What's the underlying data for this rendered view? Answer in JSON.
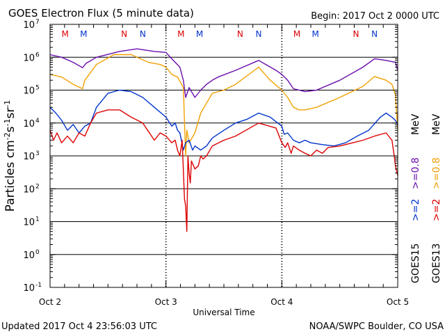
{
  "header": {
    "title": "GOES Electron Flux (5 minute data)",
    "begin": "Begin: 2017 Oct 2 0000 UTC"
  },
  "footer": {
    "updated": "Updated 2017 Oct  4 23:56:03 UTC",
    "credit": "NOAA/SWPC Boulder, CO USA"
  },
  "colors": {
    "goes15_08": "#6a0dad",
    "goes13_08": "#f0a000",
    "goes15_2": "#0033cc",
    "goes13_2": "#dd0000"
  },
  "chart_data": {
    "type": "line",
    "title": "GOES Electron Flux (5 minute data)",
    "xlabel": "Universal Time",
    "ylabel": "Particles cm-2s-1sr-1",
    "yscale": "log",
    "ylim": [
      0.1,
      10000000
    ],
    "xlim": [
      0,
      3
    ],
    "x_ticks": [
      {
        "x": 0,
        "label": "Oct 2"
      },
      {
        "x": 1,
        "label": "Oct 3"
      },
      {
        "x": 2,
        "label": "Oct 4"
      },
      {
        "x": 3,
        "label": "Oct 5"
      }
    ],
    "y_ticks": [
      {
        "exp": -1,
        "label": "10",
        "sup": "-1"
      },
      {
        "exp": 0,
        "label": "10",
        "sup": "0"
      },
      {
        "exp": 1,
        "label": "10",
        "sup": "1"
      },
      {
        "exp": 2,
        "label": "10",
        "sup": "2"
      },
      {
        "exp": 3,
        "label": "10",
        "sup": "3"
      },
      {
        "exp": 4,
        "label": "10",
        "sup": "4"
      },
      {
        "exp": 5,
        "label": "10",
        "sup": "5"
      },
      {
        "exp": 6,
        "label": "10",
        "sup": "6"
      },
      {
        "exp": 7,
        "label": "10",
        "sup": "7"
      }
    ],
    "threshold": 1000,
    "grid": "horizontal decades",
    "mn_markers": [
      {
        "x": 0.13,
        "label": "M",
        "color": "#dd0000"
      },
      {
        "x": 0.29,
        "label": "M",
        "color": "#0033cc"
      },
      {
        "x": 0.64,
        "label": "N",
        "color": "#dd0000"
      },
      {
        "x": 0.8,
        "label": "N",
        "color": "#0033cc"
      },
      {
        "x": 1.13,
        "label": "M",
        "color": "#dd0000"
      },
      {
        "x": 1.29,
        "label": "M",
        "color": "#0033cc"
      },
      {
        "x": 1.64,
        "label": "N",
        "color": "#dd0000"
      },
      {
        "x": 1.8,
        "label": "N",
        "color": "#0033cc"
      },
      {
        "x": 2.13,
        "label": "M",
        "color": "#dd0000"
      },
      {
        "x": 2.29,
        "label": "M",
        "color": "#0033cc"
      },
      {
        "x": 2.64,
        "label": "N",
        "color": "#dd0000"
      },
      {
        "x": 2.8,
        "label": "N",
        "color": "#0033cc"
      }
    ],
    "legend": {
      "placement": "right",
      "col1": [
        {
          "text": ">=2",
          "color": "#0033cc"
        },
        {
          "text": ">=0.8",
          "color": "#6a0dad"
        },
        {
          "text": "MeV",
          "color": "#000000"
        },
        {
          "text": "GOES15",
          "color": "#000000"
        }
      ],
      "col2": [
        {
          "text": ">=2",
          "color": "#dd0000"
        },
        {
          "text": ">=0.8",
          "color": "#f0a000"
        },
        {
          "text": "MeV",
          "color": "#000000"
        },
        {
          "text": "GOES13",
          "color": "#000000"
        }
      ]
    },
    "series": [
      {
        "key": "goes15_08",
        "color": "#6a0dad",
        "x": [
          0,
          0.1,
          0.2,
          0.28,
          0.31,
          0.4,
          0.6,
          0.75,
          0.9,
          1.0,
          1.05,
          1.08,
          1.12,
          1.15,
          1.17,
          1.2,
          1.25,
          1.3,
          1.35,
          1.4,
          1.45,
          1.6,
          1.8,
          1.95,
          2.0,
          2.05,
          2.1,
          2.15,
          2.2,
          2.3,
          2.5,
          2.7,
          2.8,
          2.9,
          2.98,
          3.0
        ],
        "y": [
          1200000,
          1000000,
          700000,
          480000,
          650000,
          1000000,
          1500000,
          1800000,
          1500000,
          1400000,
          900000,
          700000,
          500000,
          200000,
          60000,
          120000,
          60000,
          100000,
          150000,
          200000,
          250000,
          400000,
          800000,
          400000,
          300000,
          200000,
          110000,
          100000,
          90000,
          100000,
          200000,
          500000,
          900000,
          800000,
          700000,
          400000
        ]
      },
      {
        "key": "goes13_08",
        "color": "#f0a000",
        "x": [
          0,
          0.1,
          0.2,
          0.28,
          0.3,
          0.4,
          0.55,
          0.7,
          0.85,
          0.95,
          1.0,
          1.05,
          1.1,
          1.15,
          1.17,
          1.18,
          1.2,
          1.25,
          1.3,
          1.35,
          1.4,
          1.5,
          1.6,
          1.8,
          1.9,
          2.0,
          2.05,
          2.1,
          2.15,
          2.2,
          2.3,
          2.5,
          2.7,
          2.8,
          2.9,
          2.95,
          2.98,
          3.0
        ],
        "y": [
          300000,
          250000,
          150000,
          110000,
          200000,
          600000,
          1200000,
          1200000,
          700000,
          600000,
          500000,
          300000,
          250000,
          120000,
          1000,
          6000,
          2500,
          5000,
          20000,
          40000,
          80000,
          100000,
          150000,
          500000,
          200000,
          100000,
          60000,
          30000,
          25000,
          25000,
          30000,
          60000,
          130000,
          260000,
          200000,
          150000,
          70000,
          6000
        ]
      },
      {
        "key": "goes15_2",
        "color": "#0033cc",
        "x": [
          0,
          0.05,
          0.1,
          0.15,
          0.2,
          0.25,
          0.3,
          0.35,
          0.4,
          0.5,
          0.6,
          0.7,
          0.8,
          0.9,
          1.0,
          1.05,
          1.08,
          1.1,
          1.12,
          1.15,
          1.17,
          1.2,
          1.23,
          1.25,
          1.3,
          1.35,
          1.4,
          1.5,
          1.6,
          1.7,
          1.8,
          1.9,
          2.0,
          2.02,
          2.05,
          2.1,
          2.15,
          2.2,
          2.25,
          2.35,
          2.45,
          2.55,
          2.65,
          2.75,
          2.85,
          2.9,
          2.95,
          2.98,
          3.0
        ],
        "y": [
          30000,
          20000,
          12000,
          6000,
          9000,
          5000,
          8000,
          10000,
          30000,
          80000,
          100000,
          90000,
          60000,
          30000,
          15000,
          8000,
          10000,
          6000,
          5000,
          1500,
          2500,
          3000,
          1500,
          2000,
          1500,
          2000,
          3500,
          6000,
          10000,
          13000,
          20000,
          15000,
          8000,
          4500,
          5000,
          3000,
          2500,
          3000,
          2500,
          2200,
          2000,
          2500,
          4000,
          6000,
          15000,
          20000,
          15000,
          12000,
          9000
        ]
      },
      {
        "key": "goes13_2",
        "color": "#dd0000",
        "x": [
          0,
          0.03,
          0.06,
          0.1,
          0.15,
          0.2,
          0.25,
          0.3,
          0.35,
          0.4,
          0.5,
          0.6,
          0.7,
          0.8,
          0.9,
          0.95,
          1.0,
          1.05,
          1.08,
          1.1,
          1.12,
          1.14,
          1.16,
          1.17,
          1.18,
          1.19,
          1.2,
          1.21,
          1.22,
          1.25,
          1.28,
          1.3,
          1.32,
          1.35,
          1.4,
          1.5,
          1.6,
          1.8,
          1.95,
          2.0,
          2.03,
          2.05,
          2.08,
          2.1,
          2.15,
          2.2,
          2.25,
          2.3,
          2.35,
          2.4,
          2.5,
          2.7,
          2.8,
          2.9,
          2.95,
          2.97,
          2.98,
          3.0
        ],
        "y": [
          6000,
          3000,
          5000,
          2500,
          4000,
          2500,
          5000,
          4000,
          10000,
          20000,
          25000,
          25000,
          15000,
          10000,
          3000,
          5000,
          4000,
          2500,
          3000,
          1500,
          1000,
          3000,
          50,
          30,
          5,
          1000,
          300,
          150,
          700,
          400,
          500,
          1000,
          800,
          1000,
          2000,
          3000,
          4000,
          10000,
          7000,
          2500,
          1800,
          2500,
          1200,
          2000,
          1500,
          1200,
          1000,
          1500,
          1200,
          1800,
          2000,
          3000,
          4000,
          5000,
          3000,
          1000,
          500,
          250
        ]
      }
    ]
  }
}
